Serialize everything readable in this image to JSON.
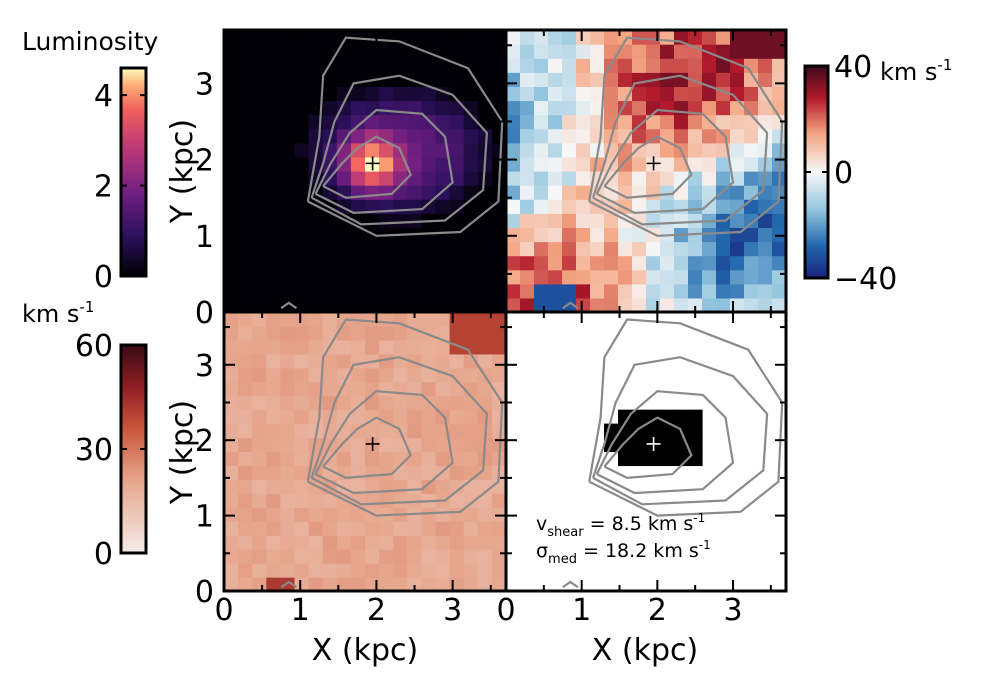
{
  "chart_data": [
    {
      "type": "heatmap",
      "panel": "luminosity",
      "ylabel": "Y (kpc)",
      "xlim": [
        0,
        3.7
      ],
      "ylim": [
        0,
        3.7
      ],
      "yticks": [
        "0",
        "1",
        "2",
        "3"
      ],
      "colorbar": {
        "label": "Luminosity",
        "range": [
          0,
          4.6
        ],
        "ticks": [
          "0",
          "2",
          "4"
        ],
        "colormap": "magma"
      },
      "center_marker": {
        "x": 1.95,
        "y": 1.95,
        "symbol": "+"
      },
      "peak_value": 4.5
    },
    {
      "type": "heatmap",
      "panel": "velocity",
      "xlim": [
        0,
        3.7
      ],
      "ylim": [
        0,
        3.7
      ],
      "colorbar": {
        "unit": "km s",
        "unit_exp": "-1",
        "range": [
          -40,
          40
        ],
        "ticks": [
          "40",
          "0",
          "−40"
        ],
        "colormap": "RdBu_r"
      },
      "center_marker": {
        "x": 1.95,
        "y": 1.95,
        "symbol": "+"
      }
    },
    {
      "type": "heatmap",
      "panel": "dispersion",
      "ylabel": "Y (kpc)",
      "xlabel": "X (kpc)",
      "xlim": [
        0,
        3.7
      ],
      "ylim": [
        0,
        3.7
      ],
      "xticks": [
        "0",
        "1",
        "2",
        "3"
      ],
      "yticks": [
        "0",
        "1",
        "2",
        "3"
      ],
      "colorbar": {
        "unit": "km s",
        "unit_exp": "-1",
        "range": [
          0,
          60
        ],
        "ticks": [
          "60",
          "30",
          "0"
        ],
        "colormap": "Reds"
      },
      "center_marker": {
        "x": 1.95,
        "y": 1.95,
        "symbol": "+"
      }
    },
    {
      "type": "heatmap",
      "panel": "mask",
      "xlabel": "X (kpc)",
      "xlim": [
        0,
        3.7
      ],
      "ylim": [
        0,
        3.7
      ],
      "xticks": [
        "0",
        "1",
        "2",
        "3"
      ],
      "center_marker": {
        "x": 1.95,
        "y": 1.95,
        "symbol": "+"
      },
      "annotations": {
        "vshear": {
          "sym": "v",
          "sub": "shear",
          "text": " = 8.5 km s",
          "exp": "-1",
          "value": 8.5
        },
        "sigma": {
          "sym": "σ",
          "sub": "med",
          "text": " = 18.2 km s",
          "exp": "-1",
          "value": 18.2
        }
      }
    }
  ],
  "colors": {
    "contour": "#8a8a8a",
    "luminosity_bg": "#000004",
    "dispersion_base": "#e0a088",
    "mask_fill": "#000000"
  }
}
